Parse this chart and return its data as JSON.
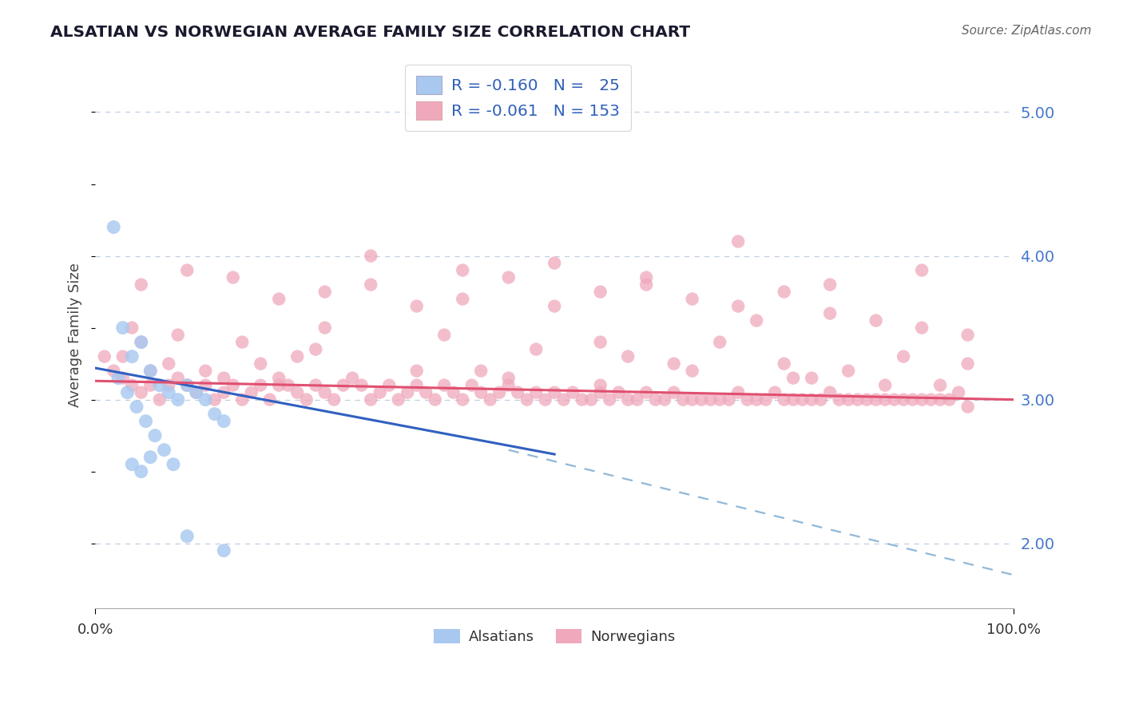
{
  "title": "ALSATIAN VS NORWEGIAN AVERAGE FAMILY SIZE CORRELATION CHART",
  "source_text": "Source: ZipAtlas.com",
  "ylabel": "Average Family Size",
  "xmin": 0.0,
  "xmax": 100.0,
  "ymin": 1.55,
  "ymax": 5.35,
  "yticks_right": [
    2.0,
    3.0,
    4.0,
    5.0
  ],
  "grid_color": "#c0cfe0",
  "background_color": "#ffffff",
  "alsatian_color": "#a8c8f0",
  "norwegian_color": "#f0a8bc",
  "alsatian_line_color": "#3060c0",
  "norwegian_line_color": "#e05070",
  "dashed_line_color": "#90b8d8",
  "legend_text_color": "#3060b8",
  "alsatian_scatter_x": [
    2.0,
    3.0,
    4.0,
    5.0,
    6.0,
    7.0,
    8.0,
    9.0,
    10.0,
    11.0,
    12.0,
    13.0,
    14.0,
    2.5,
    3.5,
    4.5,
    5.5,
    6.5,
    7.5,
    8.5,
    4.0,
    5.0,
    6.0,
    10.0,
    14.0
  ],
  "alsatian_scatter_y": [
    4.2,
    3.5,
    3.3,
    3.4,
    3.2,
    3.1,
    3.05,
    3.0,
    3.1,
    3.05,
    3.0,
    2.9,
    2.85,
    3.15,
    3.05,
    2.95,
    2.85,
    2.75,
    2.65,
    2.55,
    2.55,
    2.5,
    2.6,
    2.05,
    1.95
  ],
  "norwegian_scatter_x": [
    1,
    2,
    3,
    4,
    5,
    6,
    7,
    8,
    9,
    10,
    11,
    12,
    13,
    14,
    15,
    16,
    17,
    18,
    19,
    20,
    21,
    22,
    23,
    24,
    25,
    26,
    27,
    28,
    29,
    30,
    31,
    32,
    33,
    34,
    35,
    36,
    37,
    38,
    39,
    40,
    41,
    42,
    43,
    44,
    45,
    46,
    47,
    48,
    49,
    50,
    51,
    52,
    53,
    54,
    55,
    56,
    57,
    58,
    59,
    60,
    61,
    62,
    63,
    64,
    65,
    66,
    67,
    68,
    69,
    70,
    71,
    72,
    73,
    74,
    75,
    76,
    77,
    78,
    79,
    80,
    81,
    82,
    83,
    84,
    85,
    86,
    87,
    88,
    89,
    90,
    91,
    92,
    93,
    94,
    95,
    5,
    10,
    15,
    20,
    25,
    30,
    35,
    40,
    45,
    50,
    55,
    60,
    65,
    70,
    75,
    80,
    85,
    90,
    95,
    30,
    40,
    50,
    60,
    70,
    80,
    90,
    3,
    8,
    12,
    18,
    22,
    5,
    42,
    58,
    68,
    75,
    82,
    88,
    95,
    25,
    55,
    72,
    38,
    48,
    63,
    78,
    92,
    6,
    14,
    20,
    35,
    45,
    55,
    65,
    76,
    86,
    4,
    9,
    16,
    24
  ],
  "norwegian_scatter_y": [
    3.3,
    3.2,
    3.15,
    3.1,
    3.05,
    3.1,
    3.0,
    3.1,
    3.15,
    3.1,
    3.05,
    3.1,
    3.0,
    3.05,
    3.1,
    3.0,
    3.05,
    3.1,
    3.0,
    3.15,
    3.1,
    3.05,
    3.0,
    3.1,
    3.05,
    3.0,
    3.1,
    3.15,
    3.1,
    3.0,
    3.05,
    3.1,
    3.0,
    3.05,
    3.1,
    3.05,
    3.0,
    3.1,
    3.05,
    3.0,
    3.1,
    3.05,
    3.0,
    3.05,
    3.1,
    3.05,
    3.0,
    3.05,
    3.0,
    3.05,
    3.0,
    3.05,
    3.0,
    3.0,
    3.05,
    3.0,
    3.05,
    3.0,
    3.0,
    3.05,
    3.0,
    3.0,
    3.05,
    3.0,
    3.0,
    3.0,
    3.0,
    3.0,
    3.0,
    3.05,
    3.0,
    3.0,
    3.0,
    3.05,
    3.0,
    3.0,
    3.0,
    3.0,
    3.0,
    3.05,
    3.0,
    3.0,
    3.0,
    3.0,
    3.0,
    3.0,
    3.0,
    3.0,
    3.0,
    3.0,
    3.0,
    3.0,
    3.0,
    3.05,
    2.95,
    3.8,
    3.9,
    3.85,
    3.7,
    3.75,
    3.8,
    3.65,
    3.7,
    3.85,
    3.65,
    3.75,
    3.8,
    3.7,
    3.65,
    3.75,
    3.6,
    3.55,
    3.5,
    3.45,
    4.0,
    3.9,
    3.95,
    3.85,
    4.1,
    3.8,
    3.9,
    3.3,
    3.25,
    3.2,
    3.25,
    3.3,
    3.4,
    3.2,
    3.3,
    3.4,
    3.25,
    3.2,
    3.3,
    3.25,
    3.5,
    3.4,
    3.55,
    3.45,
    3.35,
    3.25,
    3.15,
    3.1,
    3.2,
    3.15,
    3.1,
    3.2,
    3.15,
    3.1,
    3.2,
    3.15,
    3.1,
    3.5,
    3.45,
    3.4,
    3.35
  ],
  "als_trend_x0": 0.0,
  "als_trend_x1": 50.0,
  "als_trend_y0": 3.22,
  "als_trend_y1": 2.62,
  "nor_trend_x0": 0.0,
  "nor_trend_x1": 100.0,
  "nor_trend_y0": 3.13,
  "nor_trend_y1": 3.0,
  "dash_x0": 45.0,
  "dash_x1": 100.0,
  "dash_y0": 2.65,
  "dash_y1": 1.78
}
